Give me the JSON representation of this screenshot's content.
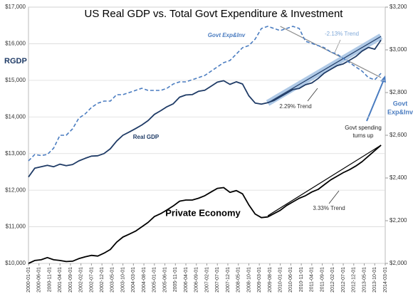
{
  "chart_data": {
    "type": "line",
    "title": "US Real GDP vs. Total Govt Expenditure & Investment",
    "y_label": "RGDP",
    "y2_label": [
      "Govt",
      "Exp&Inv"
    ],
    "annotation": [
      "Govt spending",
      "turns up"
    ],
    "grid": true,
    "xlim": [
      "2000-01-01",
      "2014-03-01"
    ],
    "xticks": [
      "2000-01-01",
      "2000-06-01",
      "2000-11-01",
      "2001-04-01",
      "2001-09-01",
      "2002-02-01",
      "2002-07-01",
      "2002-12-01",
      "2003-05-01",
      "2003-10-01",
      "2004-03-01",
      "2004-08-01",
      "2005-01-01",
      "2005-06-01",
      "2005-11-01",
      "2006-04-01",
      "2006-09-01",
      "2007-02-01",
      "2007-07-01",
      "2007-12-01",
      "2008-05-01",
      "2008-10-01",
      "2009-03-01",
      "2009-08-01",
      "2010-01-01",
      "2010-06-01",
      "2010-11-01",
      "2011-04-01",
      "2011-09-01",
      "2012-02-01",
      "2012-07-01",
      "2012-12-01",
      "2013-05-01",
      "2013-10-01",
      "2014-03-01"
    ],
    "ylim": [
      10000,
      17000
    ],
    "yticks": [
      {
        "value": 10000,
        "label": "$10,000"
      },
      {
        "value": 11000,
        "label": "$11,000"
      },
      {
        "value": 12000,
        "label": "$12,000"
      },
      {
        "value": 13000,
        "label": "$13,000"
      },
      {
        "value": 14000,
        "label": "$14,000"
      },
      {
        "value": 15000,
        "label": "$15,000"
      },
      {
        "value": 16000,
        "label": "$16,000"
      },
      {
        "value": 17000,
        "label": "$17,000"
      }
    ],
    "y2lim": [
      2000,
      3200
    ],
    "y2ticks": [
      {
        "value": 2000,
        "label": "$2,000"
      },
      {
        "value": 2200,
        "label": "$2,200"
      },
      {
        "value": 2400,
        "label": "$2,400"
      },
      {
        "value": 2600,
        "label": "$2,600"
      },
      {
        "value": 2800,
        "label": "$2,800"
      },
      {
        "value": 3000,
        "label": "$3,000"
      },
      {
        "value": 3200,
        "label": "$3,200"
      }
    ],
    "x": [
      "2000-01-01",
      "2000-04-01",
      "2000-07-01",
      "2000-10-01",
      "2001-01-01",
      "2001-04-01",
      "2001-07-01",
      "2001-10-01",
      "2002-01-01",
      "2002-04-01",
      "2002-07-01",
      "2002-10-01",
      "2003-01-01",
      "2003-04-01",
      "2003-07-01",
      "2003-10-01",
      "2004-01-01",
      "2004-04-01",
      "2004-07-01",
      "2004-10-01",
      "2005-01-01",
      "2005-04-01",
      "2005-07-01",
      "2005-10-01",
      "2006-01-01",
      "2006-04-01",
      "2006-07-01",
      "2006-10-01",
      "2007-01-01",
      "2007-04-01",
      "2007-07-01",
      "2007-10-01",
      "2008-01-01",
      "2008-04-01",
      "2008-07-01",
      "2008-10-01",
      "2009-01-01",
      "2009-04-01",
      "2009-07-01",
      "2009-10-01",
      "2010-01-01",
      "2010-04-01",
      "2010-07-01",
      "2010-10-01",
      "2011-01-01",
      "2011-04-01",
      "2011-07-01",
      "2011-10-01",
      "2012-01-01",
      "2012-04-01",
      "2012-07-01",
      "2012-10-01",
      "2013-01-01",
      "2013-04-01",
      "2013-07-01",
      "2013-10-01",
      "2014-01-01"
    ],
    "series": [
      {
        "name": "Real GDP",
        "color": "#1f3b66",
        "dash": false,
        "values": [
          12360,
          12600,
          12640,
          12680,
          12640,
          12710,
          12670,
          12700,
          12800,
          12870,
          12930,
          12940,
          13000,
          13130,
          13340,
          13500,
          13590,
          13680,
          13780,
          13900,
          14070,
          14170,
          14280,
          14360,
          14540,
          14600,
          14610,
          14700,
          14730,
          14840,
          14950,
          14990,
          14890,
          14960,
          14900,
          14580,
          14380,
          14350,
          14390,
          14450,
          14550,
          14650,
          14750,
          14780,
          14880,
          14930,
          15050,
          15200,
          15300,
          15400,
          15450,
          15550,
          15650,
          15800,
          15900,
          15850,
          16100
        ]
      },
      {
        "name": "Govt Exp&Inv",
        "color": "#4a7cc0",
        "dash": true,
        "axis": "y2",
        "values": [
          2480,
          2510,
          2505,
          2510,
          2540,
          2600,
          2600,
          2630,
          2680,
          2700,
          2730,
          2750,
          2760,
          2760,
          2790,
          2790,
          2800,
          2810,
          2820,
          2810,
          2810,
          2810,
          2820,
          2840,
          2850,
          2850,
          2860,
          2870,
          2880,
          2900,
          2920,
          2940,
          2950,
          2980,
          3010,
          3020,
          3050,
          3100,
          3110,
          3100,
          3090,
          3100,
          3110,
          3100,
          3040,
          3030,
          3020,
          3010,
          2990,
          2980,
          2960,
          2940,
          2920,
          2900,
          2870,
          2860,
          2890
        ]
      },
      {
        "name": "Private Economy",
        "color": "#000000",
        "dash": false,
        "values": [
          10000,
          10080,
          10100,
          10160,
          10100,
          10080,
          10050,
          10060,
          10130,
          10180,
          10220,
          10200,
          10280,
          10380,
          10580,
          10720,
          10800,
          10880,
          11000,
          11120,
          11280,
          11360,
          11460,
          11570,
          11700,
          11730,
          11730,
          11780,
          11850,
          11950,
          12050,
          12070,
          11940,
          11990,
          11900,
          11600,
          11350,
          11250,
          11270,
          11360,
          11450,
          11580,
          11680,
          11780,
          11850,
          11950,
          12020,
          12150,
          12280,
          12380,
          12480,
          12560,
          12660,
          12780,
          12930,
          13080,
          13230
        ]
      }
    ],
    "trend_lines": [
      {
        "label": "-2.13% Trend",
        "color": "#8a8a8a",
        "axis": "y2",
        "x": [
          "2010-01-01",
          "2014-01-01"
        ],
        "values": [
          3110,
          2870
        ]
      },
      {
        "label": "2.29% Trend",
        "color": "#1f3b66",
        "band": "#9bbbe0",
        "x": [
          "2009-07-01",
          "2014-01-01"
        ],
        "values": [
          14380,
          16200
        ]
      },
      {
        "label": "3.33% Trend",
        "color": "#000000",
        "x": [
          "2009-07-01",
          "2014-01-01"
        ],
        "values": [
          11300,
          13230
        ]
      }
    ]
  }
}
